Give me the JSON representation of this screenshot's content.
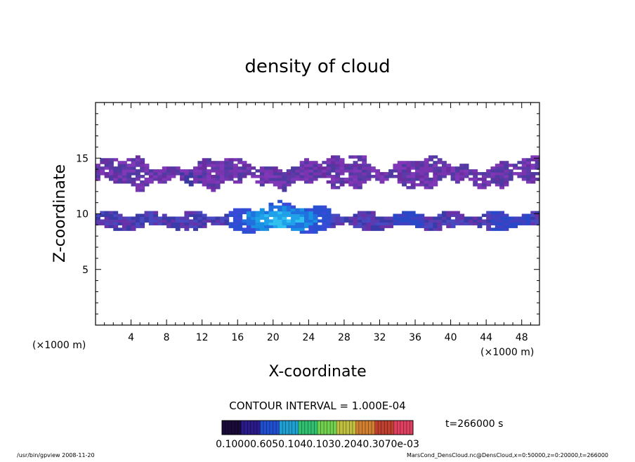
{
  "chart_data": {
    "type": "heatmap",
    "title": "density of cloud",
    "xlabel": "X-coordinate",
    "ylabel": "Z-coordinate",
    "x_unit_left": "(×1000 m)",
    "x_unit_right": "(×1000 m)",
    "xlim": [
      0,
      50
    ],
    "ylim": [
      0,
      20
    ],
    "x_ticks": [
      "4",
      "8",
      "12",
      "16",
      "20",
      "24",
      "28",
      "32",
      "36",
      "40",
      "44",
      "48"
    ],
    "y_ticks": [
      "5",
      "10",
      "15"
    ],
    "contour_interval": "CONTOUR INTERVAL = 1.000E-04",
    "time_label": "t=266000 s",
    "colorbar_labels_text": "0.10000.6050.1040.1030.2040.3070e-03",
    "colorbar_colors": [
      "#1a0a3a",
      "#2a1a8a",
      "#2050d0",
      "#20a0d0",
      "#30c070",
      "#70d050",
      "#c0c040",
      "#d08030",
      "#c04030",
      "#e04060"
    ],
    "cloud_layers": [
      {
        "name": "upper",
        "z_range": [
          12.5,
          15.0
        ],
        "peak_density": 0.0001
      },
      {
        "name": "lower",
        "z_range": [
          8.5,
          10.5
        ],
        "peak_density": 0.0007
      }
    ],
    "grid": false
  },
  "footer": {
    "left": "/usr/bin/gpview   2008-11-20",
    "right": "MarsCond_DensCloud.nc@DensCloud,x=0:50000,z=0:20000,t=266000"
  }
}
